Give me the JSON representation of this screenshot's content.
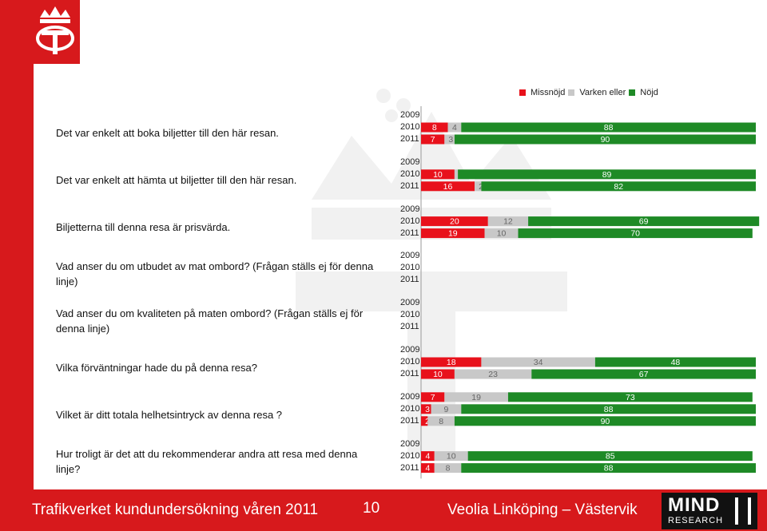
{
  "legend": [
    {
      "label": "Missnöjd",
      "color": "#e8111b"
    },
    {
      "label": "Varken eller",
      "color": "#c8c8c8"
    },
    {
      "label": "Nöjd",
      "color": "#1e8a26"
    }
  ],
  "chart_data": {
    "type": "bar",
    "stacked": true,
    "orientation": "horizontal",
    "categories": [
      "Det var enkelt att boka biljetter till den här resan.",
      "Det var enkelt att hämta ut biljetter till den här resan.",
      "Biljetterna till denna resa är prisvärda.",
      "Vad anser du om utbudet av mat ombord? (Frågan ställs ej för denna linje)",
      "Vad anser du om kvaliteten på maten ombord? (Frågan ställs ej för denna linje)",
      "Vilka förväntningar hade du på denna resa?",
      "Vilket är ditt totala helhetsintryck av denna resa ?",
      "Hur troligt är det att du rekommenderar andra att resa med denna linje?"
    ],
    "years": [
      "2009",
      "2010",
      "2011"
    ],
    "series": [
      {
        "name": "Missnöjd",
        "values": [
          [
            null,
            8,
            7
          ],
          [
            null,
            10,
            16
          ],
          [
            null,
            20,
            19
          ],
          [
            null,
            null,
            null
          ],
          [
            null,
            null,
            null
          ],
          [
            null,
            18,
            10
          ],
          [
            7,
            3,
            2
          ],
          [
            null,
            4,
            4
          ]
        ]
      },
      {
        "name": "Varken eller",
        "values": [
          [
            null,
            4,
            3
          ],
          [
            null,
            1,
            2
          ],
          [
            null,
            12,
            10
          ],
          [
            null,
            null,
            null
          ],
          [
            null,
            null,
            null
          ],
          [
            null,
            34,
            23
          ],
          [
            19,
            9,
            8
          ],
          [
            null,
            10,
            8
          ]
        ]
      },
      {
        "name": "Nöjd",
        "values": [
          [
            null,
            88,
            90
          ],
          [
            null,
            89,
            82
          ],
          [
            null,
            69,
            70
          ],
          [
            null,
            null,
            null
          ],
          [
            null,
            null,
            null
          ],
          [
            null,
            48,
            67
          ],
          [
            73,
            88,
            90
          ],
          [
            null,
            85,
            88
          ]
        ]
      }
    ]
  },
  "footer": {
    "title": "Trafikverket kundundersökning våren 2011",
    "page": "10",
    "operator": "Veolia Linköping – Västervik",
    "logo_big": "MIND",
    "logo_small": "RESEARCH"
  }
}
